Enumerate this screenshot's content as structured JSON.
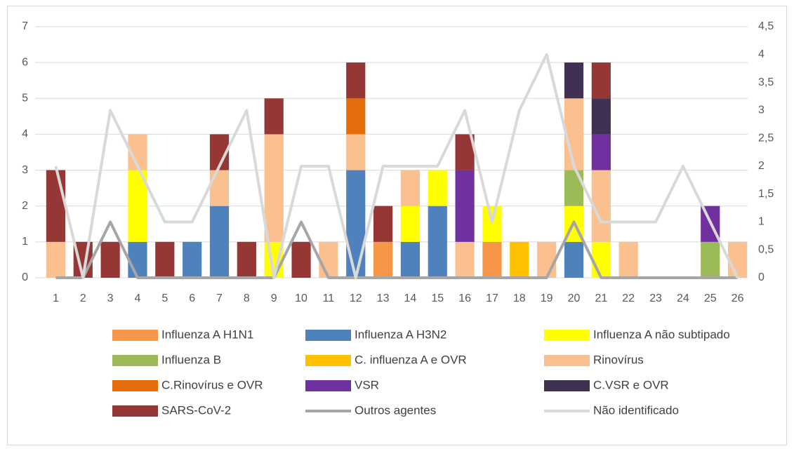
{
  "chart_data": {
    "type": "bar",
    "stacked": true,
    "categories": [
      "1",
      "2",
      "3",
      "4",
      "5",
      "6",
      "7",
      "8",
      "9",
      "10",
      "11",
      "12",
      "13",
      "14",
      "15",
      "16",
      "17",
      "18",
      "19",
      "20",
      "21",
      "22",
      "23",
      "24",
      "25",
      "26"
    ],
    "series": [
      {
        "name": "Influenza A H1N1",
        "color": "#f79646",
        "values": [
          0,
          0,
          0,
          0,
          0,
          0,
          0,
          0,
          0,
          0,
          0,
          0,
          1,
          0,
          0,
          0,
          1,
          0,
          0,
          0,
          0,
          0,
          0,
          0,
          0,
          0
        ]
      },
      {
        "name": "Influenza A H3N2",
        "color": "#4f81bd",
        "values": [
          0,
          0,
          0,
          1,
          0,
          1,
          2,
          0,
          0,
          0,
          0,
          3,
          0,
          1,
          2,
          0,
          0,
          0,
          0,
          1,
          0,
          0,
          0,
          0,
          0,
          0
        ]
      },
      {
        "name": "Influenza A não subtipado",
        "color": "#ffff00",
        "values": [
          0,
          0,
          0,
          2,
          0,
          0,
          0,
          0,
          1,
          0,
          0,
          0,
          0,
          1,
          1,
          0,
          1,
          0,
          0,
          1,
          1,
          0,
          0,
          0,
          0,
          0
        ]
      },
      {
        "name": "Influenza B",
        "color": "#9bbb59",
        "values": [
          0,
          0,
          0,
          0,
          0,
          0,
          0,
          0,
          0,
          0,
          0,
          0,
          0,
          0,
          0,
          0,
          0,
          0,
          0,
          1,
          0,
          0,
          0,
          0,
          1,
          0
        ]
      },
      {
        "name": "C. influenza A e OVR",
        "color": "#ffc000",
        "values": [
          0,
          0,
          0,
          0,
          0,
          0,
          0,
          0,
          0,
          0,
          0,
          0,
          0,
          0,
          0,
          0,
          0,
          1,
          0,
          0,
          0,
          0,
          0,
          0,
          0,
          0
        ]
      },
      {
        "name": "Rinovírus",
        "color": "#fac090",
        "values": [
          1,
          0,
          0,
          1,
          0,
          0,
          1,
          0,
          3,
          0,
          1,
          1,
          0,
          1,
          0,
          1,
          0,
          0,
          1,
          2,
          2,
          1,
          0,
          0,
          0,
          1
        ]
      },
      {
        "name": "C.Rinovírus e OVR",
        "color": "#e46c0a",
        "values": [
          0,
          0,
          0,
          0,
          0,
          0,
          0,
          0,
          0,
          0,
          0,
          1,
          0,
          0,
          0,
          0,
          0,
          0,
          0,
          0,
          0,
          0,
          0,
          0,
          0,
          0
        ]
      },
      {
        "name": "VSR",
        "color": "#7030a0",
        "values": [
          0,
          0,
          0,
          0,
          0,
          0,
          0,
          0,
          0,
          0,
          0,
          0,
          0,
          0,
          0,
          2,
          0,
          0,
          0,
          0,
          1,
          0,
          0,
          0,
          1,
          0
        ]
      },
      {
        "name": "C.VSR e OVR",
        "color": "#403152",
        "values": [
          0,
          0,
          0,
          0,
          0,
          0,
          0,
          0,
          0,
          0,
          0,
          0,
          0,
          0,
          0,
          0,
          0,
          0,
          0,
          1,
          1,
          0,
          0,
          0,
          0,
          0
        ]
      },
      {
        "name": "SARS-CoV-2",
        "color": "#953735",
        "values": [
          2,
          1,
          1,
          0,
          1,
          0,
          1,
          1,
          1,
          1,
          0,
          1,
          1,
          0,
          0,
          1,
          0,
          0,
          0,
          0,
          1,
          0,
          0,
          0,
          0,
          0
        ]
      },
      {
        "name": "Outros agentes",
        "color": "#a6a6a6",
        "type": "line",
        "axis": "y2",
        "values": [
          0,
          0,
          1,
          0,
          0,
          0,
          0,
          0,
          0,
          1,
          0,
          0,
          0,
          0,
          0,
          0,
          0,
          0,
          0,
          1,
          0,
          0,
          0,
          0,
          0,
          0
        ]
      },
      {
        "name": "Não identificado",
        "color": "#d9d9d9",
        "type": "line",
        "axis": "y2",
        "values": [
          2,
          0,
          3,
          2,
          1,
          1,
          2,
          3,
          0,
          2,
          2,
          0,
          2,
          2,
          2,
          3,
          1,
          3,
          4,
          2,
          1,
          1,
          1,
          2,
          1,
          0
        ]
      }
    ],
    "ylim": [
      0,
      7
    ],
    "yticks": [
      0,
      1,
      2,
      3,
      4,
      5,
      6,
      7
    ],
    "y2lim": [
      0,
      4.5
    ],
    "y2ticks": [
      0,
      {
        "value": 0.5,
        "label": "0,5"
      },
      1,
      {
        "value": 1.5,
        "label": "1,5"
      },
      2,
      {
        "value": 2.5,
        "label": "2,5"
      },
      3,
      {
        "value": 3.5,
        "label": "3,5"
      },
      4,
      {
        "value": 4.5,
        "label": "4,5"
      }
    ],
    "grid": true,
    "legend": "bottom"
  }
}
